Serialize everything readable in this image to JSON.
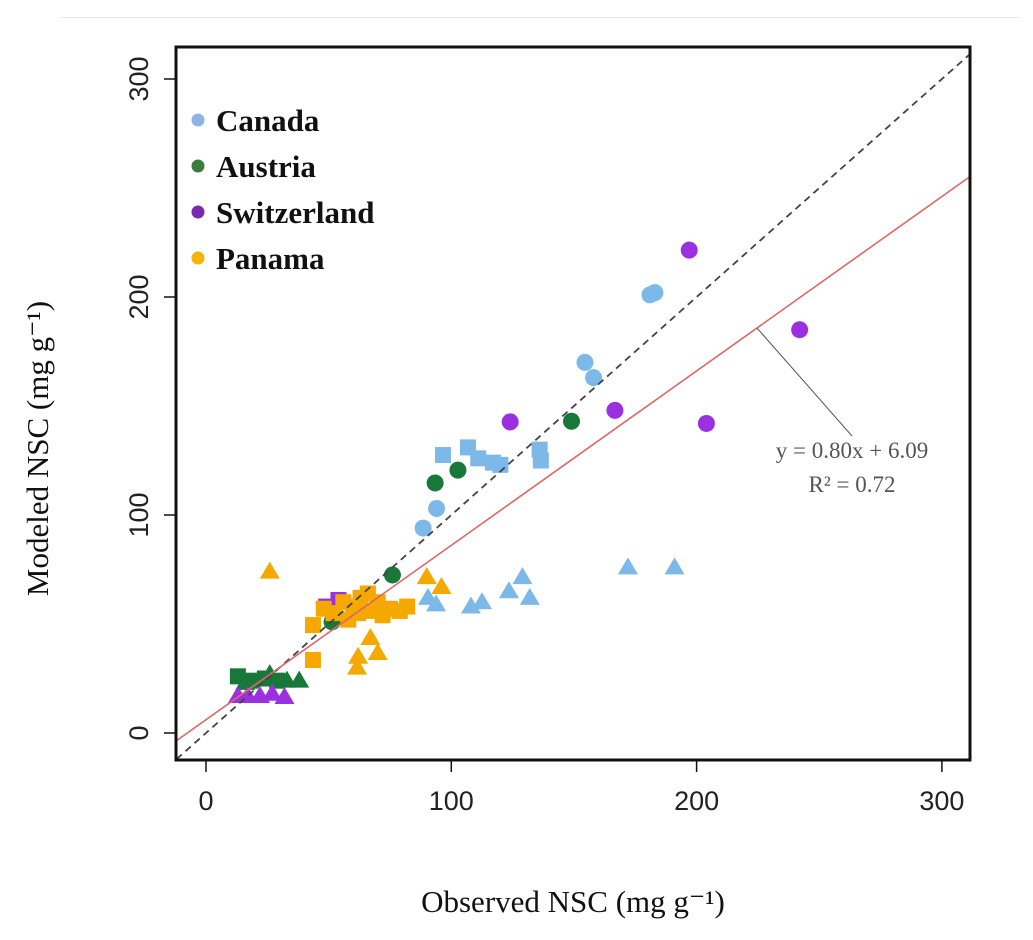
{
  "chart_data": {
    "type": "scatter",
    "xlabel": "Observed NSC (mg g⁻¹)",
    "ylabel": "Modeled NSC (mg g⁻¹)",
    "xlim": [
      -12,
      312
    ],
    "ylim": [
      -12,
      315
    ],
    "xticks": [
      "0",
      "100",
      "200",
      "300"
    ],
    "yticks": [
      "0",
      "100",
      "200",
      "300"
    ],
    "grid": false,
    "legend_position": "top-left",
    "annotation": {
      "equation": "y = 0.80x + 6.09",
      "r2": "R² = 0.72"
    },
    "regression": {
      "slope": 0.8,
      "intercept": 6.09,
      "color": "#e06666"
    },
    "identity_line": {
      "style": "dashed",
      "color": "#444444"
    },
    "series": [
      {
        "name": "Canada",
        "legend_color": "#8fb4e3",
        "color": "#7cb9e8",
        "points": [
          {
            "x": 88.5,
            "y": 94,
            "shape": "circle"
          },
          {
            "x": 94,
            "y": 103,
            "shape": "circle"
          },
          {
            "x": 154.5,
            "y": 170,
            "shape": "circle"
          },
          {
            "x": 158,
            "y": 163,
            "shape": "circle"
          },
          {
            "x": 181,
            "y": 201,
            "shape": "circle"
          },
          {
            "x": 183,
            "y": 202,
            "shape": "circle"
          },
          {
            "x": 96.6,
            "y": 127.5,
            "shape": "square"
          },
          {
            "x": 106.8,
            "y": 131,
            "shape": "square"
          },
          {
            "x": 111,
            "y": 126,
            "shape": "square"
          },
          {
            "x": 117,
            "y": 124,
            "shape": "square"
          },
          {
            "x": 120,
            "y": 123,
            "shape": "square"
          },
          {
            "x": 136,
            "y": 130,
            "shape": "square"
          },
          {
            "x": 136.5,
            "y": 125,
            "shape": "square"
          },
          {
            "x": 90.5,
            "y": 62,
            "shape": "triangle"
          },
          {
            "x": 93.8,
            "y": 59,
            "shape": "triangle"
          },
          {
            "x": 108,
            "y": 58,
            "shape": "triangle"
          },
          {
            "x": 112.5,
            "y": 60,
            "shape": "triangle"
          },
          {
            "x": 123.5,
            "y": 65,
            "shape": "triangle"
          },
          {
            "x": 129,
            "y": 71.5,
            "shape": "triangle"
          },
          {
            "x": 132,
            "y": 62,
            "shape": "triangle"
          },
          {
            "x": 172,
            "y": 76,
            "shape": "triangle"
          },
          {
            "x": 191,
            "y": 76,
            "shape": "triangle"
          }
        ]
      },
      {
        "name": "Austria",
        "legend_color": "#3a7d3a",
        "color": "#17783a",
        "points": [
          {
            "x": 51.4,
            "y": 51,
            "shape": "circle"
          },
          {
            "x": 76,
            "y": 72.5,
            "shape": "circle"
          },
          {
            "x": 93.4,
            "y": 114.7,
            "shape": "circle"
          },
          {
            "x": 102.7,
            "y": 120.6,
            "shape": "circle"
          },
          {
            "x": 149,
            "y": 143,
            "shape": "circle"
          },
          {
            "x": 13,
            "y": 26,
            "shape": "square"
          },
          {
            "x": 18,
            "y": 24,
            "shape": "square"
          },
          {
            "x": 24,
            "y": 25,
            "shape": "square"
          },
          {
            "x": 29,
            "y": 24,
            "shape": "square"
          },
          {
            "x": 16,
            "y": 23,
            "shape": "triangle"
          },
          {
            "x": 26,
            "y": 27,
            "shape": "triangle"
          },
          {
            "x": 33,
            "y": 24,
            "shape": "triangle"
          },
          {
            "x": 38,
            "y": 24,
            "shape": "triangle"
          }
        ]
      },
      {
        "name": "Switzerland",
        "legend_color": "#7a2ab0",
        "color": "#9b30e0",
        "points": [
          {
            "x": 124,
            "y": 142.7,
            "shape": "circle"
          },
          {
            "x": 166.7,
            "y": 148,
            "shape": "circle"
          },
          {
            "x": 197,
            "y": 221.5,
            "shape": "circle"
          },
          {
            "x": 204,
            "y": 142,
            "shape": "circle"
          },
          {
            "x": 242,
            "y": 185,
            "shape": "circle"
          },
          {
            "x": 49,
            "y": 58,
            "shape": "square"
          },
          {
            "x": 54,
            "y": 61,
            "shape": "square"
          },
          {
            "x": 13,
            "y": 17,
            "shape": "triangle"
          },
          {
            "x": 17,
            "y": 17,
            "shape": "triangle"
          },
          {
            "x": 22,
            "y": 17,
            "shape": "triangle"
          },
          {
            "x": 27,
            "y": 18,
            "shape": "triangle"
          },
          {
            "x": 32,
            "y": 16.5,
            "shape": "triangle"
          }
        ]
      },
      {
        "name": "Panama",
        "legend_color": "#f5b400",
        "color": "#f5a800",
        "points": [
          {
            "x": 26,
            "y": 74,
            "shape": "triangle"
          },
          {
            "x": 43.6,
            "y": 49.5,
            "shape": "square"
          },
          {
            "x": 43.6,
            "y": 33.5,
            "shape": "square"
          },
          {
            "x": 61.6,
            "y": 30,
            "shape": "triangle"
          },
          {
            "x": 62,
            "y": 35,
            "shape": "triangle"
          },
          {
            "x": 67,
            "y": 43.6,
            "shape": "triangle"
          },
          {
            "x": 70,
            "y": 36.7,
            "shape": "triangle"
          },
          {
            "x": 48,
            "y": 57,
            "shape": "square"
          },
          {
            "x": 52,
            "y": 55,
            "shape": "square"
          },
          {
            "x": 56,
            "y": 60,
            "shape": "square"
          },
          {
            "x": 60,
            "y": 58,
            "shape": "square"
          },
          {
            "x": 63,
            "y": 62,
            "shape": "square"
          },
          {
            "x": 66,
            "y": 64,
            "shape": "square"
          },
          {
            "x": 58,
            "y": 52,
            "shape": "square"
          },
          {
            "x": 62,
            "y": 55,
            "shape": "square"
          },
          {
            "x": 68,
            "y": 56,
            "shape": "square"
          },
          {
            "x": 72,
            "y": 54,
            "shape": "square"
          },
          {
            "x": 75,
            "y": 57,
            "shape": "square"
          },
          {
            "x": 79,
            "y": 56,
            "shape": "square"
          },
          {
            "x": 82,
            "y": 58,
            "shape": "square"
          },
          {
            "x": 70,
            "y": 60,
            "shape": "square"
          },
          {
            "x": 90,
            "y": 71.5,
            "shape": "triangle"
          },
          {
            "x": 96,
            "y": 67,
            "shape": "triangle"
          }
        ]
      }
    ]
  }
}
